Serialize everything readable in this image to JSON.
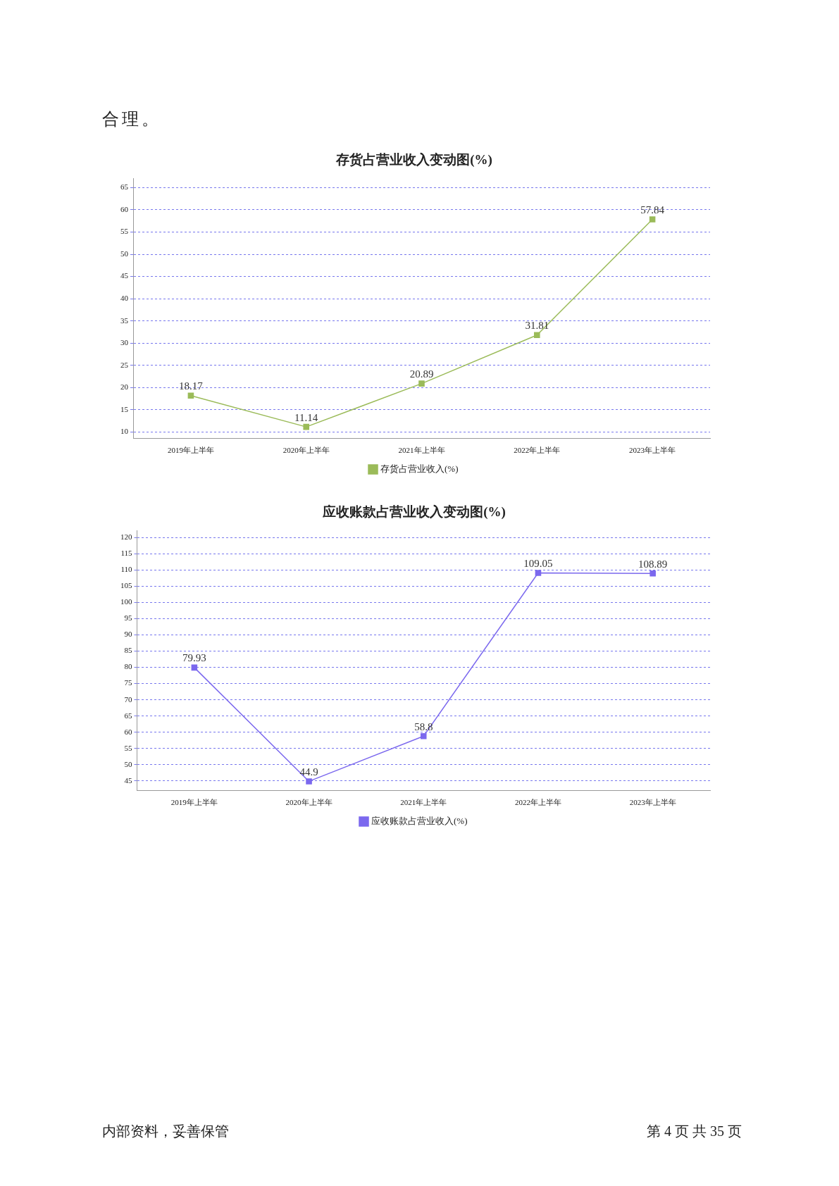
{
  "chart_data": [
    {
      "type": "line",
      "title": "存货占营业收入变动图(%)",
      "categories": [
        "2019年上半年",
        "2020年上半年",
        "2021年上半年",
        "2022年上半年",
        "2023年上半年"
      ],
      "series": [
        {
          "name": "存货占营业收入(%)",
          "color": "#9bbb59",
          "values": [
            18.17,
            11.14,
            20.89,
            31.81,
            57.84
          ]
        }
      ],
      "ylim": [
        8.5,
        67
      ],
      "yticks": [
        10,
        15,
        20,
        25,
        30,
        35,
        40,
        45,
        50,
        55,
        60,
        65
      ],
      "grid": "y",
      "legend": "bottom",
      "marker": "square",
      "line_style": "solid",
      "data_labels": true,
      "annotations": [
        "合理。"
      ]
    },
    {
      "type": "line",
      "title": "应收账款占营业收入变动图(%)",
      "categories": [
        "2019年上半年",
        "2020年上半年",
        "2021年上半年",
        "2022年上半年",
        "2023年上半年"
      ],
      "series": [
        {
          "name": "应收账款占营业收入(%)",
          "color": "#7b68ee",
          "values": [
            79.93,
            44.9,
            58.8,
            109.05,
            108.89
          ]
        }
      ],
      "ylim": [
        42,
        122
      ],
      "yticks": [
        45,
        50,
        55,
        60,
        65,
        70,
        75,
        80,
        85,
        90,
        95,
        100,
        105,
        110,
        115,
        120
      ],
      "grid": "y",
      "legend": "bottom",
      "marker": "square",
      "line_style": "solid",
      "data_labels": true,
      "annotations": [
        "内部资料，妥善保管",
        "第 4 页 共 35 页"
      ]
    }
  ]
}
